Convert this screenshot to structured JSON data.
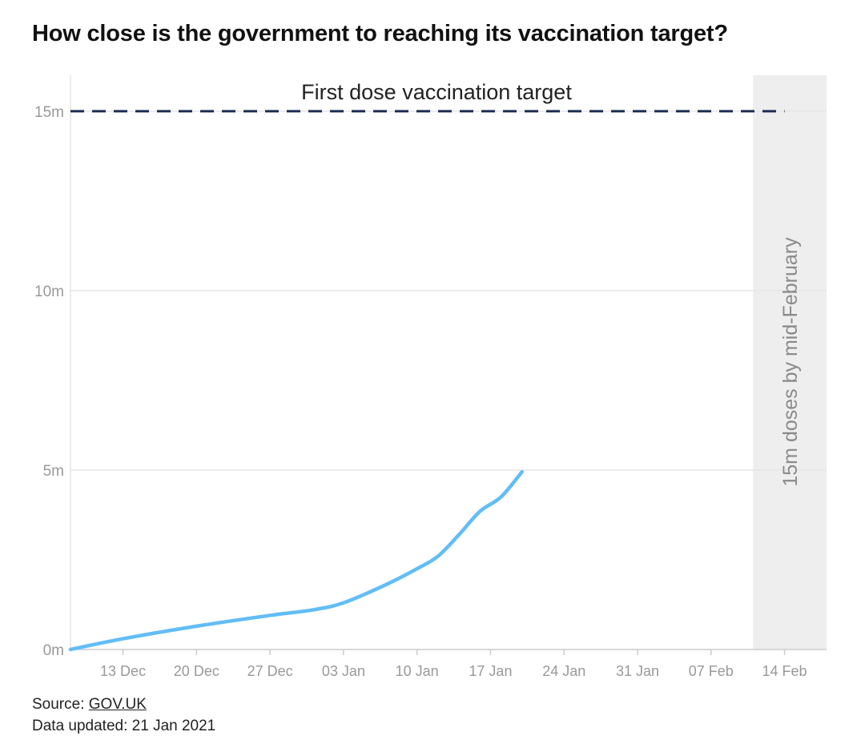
{
  "title": "How close is the government to reaching its vaccination target?",
  "chart_data": {
    "type": "line",
    "title": "How close is the government to reaching its vaccination target?",
    "xlabel": "",
    "ylabel": "",
    "x_start": "2020-12-08",
    "x_end": "2021-02-14",
    "xlim": [
      "2020-12-08",
      "2021-02-18"
    ],
    "ylim": [
      0,
      16
    ],
    "y_ticks": [
      {
        "value": 0,
        "label": "0m"
      },
      {
        "value": 5,
        "label": "5m"
      },
      {
        "value": 10,
        "label": "10m"
      },
      {
        "value": 15,
        "label": "15m"
      }
    ],
    "x_ticks": [
      {
        "date": "2020-12-13",
        "label": "13 Dec"
      },
      {
        "date": "2020-12-20",
        "label": "20 Dec"
      },
      {
        "date": "2020-12-27",
        "label": "27 Dec"
      },
      {
        "date": "2021-01-03",
        "label": "03 Jan"
      },
      {
        "date": "2021-01-10",
        "label": "10 Jan"
      },
      {
        "date": "2021-01-17",
        "label": "17 Jan"
      },
      {
        "date": "2021-01-24",
        "label": "24 Jan"
      },
      {
        "date": "2021-01-31",
        "label": "31 Jan"
      },
      {
        "date": "2021-02-07",
        "label": "07 Feb"
      },
      {
        "date": "2021-02-14",
        "label": "14 Feb"
      }
    ],
    "grid": true,
    "series": [
      {
        "color": "#62bdf6",
        "points": [
          {
            "x": "2020-12-08",
            "y": 0.0
          },
          {
            "x": "2020-12-13",
            "y": 0.3
          },
          {
            "x": "2020-12-20",
            "y": 0.65
          },
          {
            "x": "2020-12-27",
            "y": 0.95
          },
          {
            "x": "2020-12-31",
            "y": 1.1
          },
          {
            "x": "2021-01-03",
            "y": 1.3
          },
          {
            "x": "2021-01-07",
            "y": 1.8
          },
          {
            "x": "2021-01-10",
            "y": 2.25
          },
          {
            "x": "2021-01-12",
            "y": 2.6
          },
          {
            "x": "2021-01-14",
            "y": 3.2
          },
          {
            "x": "2021-01-16",
            "y": 3.85
          },
          {
            "x": "2021-01-18",
            "y": 4.25
          },
          {
            "x": "2021-01-20",
            "y": 4.95
          }
        ]
      }
    ],
    "target_line": {
      "value": 15,
      "label": "First dose vaccination target",
      "color": "#1b2d4f"
    },
    "shaded_region": {
      "from": "2021-02-11",
      "to": "2021-02-18",
      "label": "15m doses by mid-February",
      "color": "#eeeeee"
    }
  },
  "footer": {
    "source_prefix": "Source: ",
    "source_link": "GOV.UK",
    "updated": "Data updated: 21 Jan 2021"
  },
  "colors": {
    "axis_text": "#999999",
    "gridline": "#e6e6e6",
    "axis": "#cccccc"
  }
}
